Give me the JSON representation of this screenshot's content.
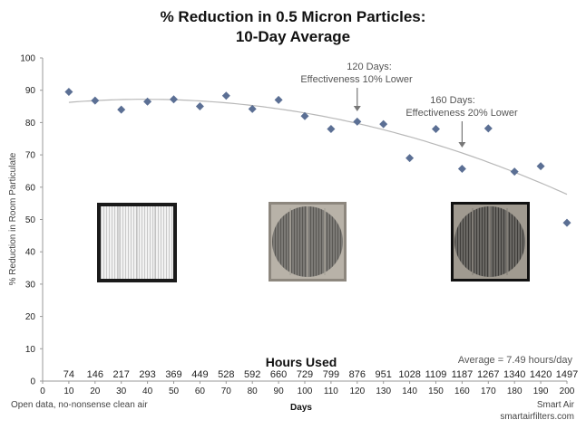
{
  "chart_data": {
    "type": "scatter",
    "title": "% Reduction in 0.5 Micron Particles:",
    "subtitle": "10-Day Average",
    "ylabel": "% Reduction in Room Particulate",
    "xlabel": "Days",
    "xlim": [
      0,
      200
    ],
    "ylim": [
      0,
      100
    ],
    "x_ticks": [
      "0",
      "10",
      "20",
      "30",
      "40",
      "50",
      "60",
      "70",
      "80",
      "90",
      "100",
      "110",
      "120",
      "130",
      "140",
      "150",
      "160",
      "170",
      "180",
      "190",
      "200"
    ],
    "y_ticks": [
      "0",
      "10",
      "20",
      "30",
      "40",
      "50",
      "60",
      "70",
      "80",
      "90",
      "100"
    ],
    "grid": false,
    "x": [
      10,
      20,
      30,
      40,
      50,
      60,
      70,
      80,
      90,
      100,
      110,
      120,
      130,
      140,
      150,
      160,
      170,
      180,
      190,
      200
    ],
    "y": [
      89.5,
      86.8,
      84,
      86.5,
      87.2,
      85,
      88.3,
      84.2,
      87,
      82,
      78,
      80.3,
      79.5,
      69,
      78,
      65.7,
      78.2,
      64.8,
      66.5,
      49
    ],
    "hours_label": "Hours Used",
    "hours": [
      "74",
      "146",
      "217",
      "293",
      "369",
      "449",
      "528",
      "592",
      "660",
      "729",
      "799",
      "876",
      "951",
      "1028",
      "1109",
      "1187",
      "1267",
      "1340",
      "1420",
      "1497"
    ],
    "average_note": "Average = 7.49 hours/day",
    "annotations": [
      {
        "line1": "120 Days:",
        "line2": "Effectiveness 10% Lower",
        "x": 120
      },
      {
        "line1": "160 Days:",
        "line2": "Effectiveness 20% Lower",
        "x": 160
      }
    ],
    "trendline": "polynomial",
    "colors": {
      "points": "#5b6f94",
      "trend": "#b8b8b8",
      "arrow": "#777777"
    }
  },
  "footer": {
    "left": "Open data, no-nonsense clean air",
    "right1": "Smart Air",
    "right2": "smartairfilters.com"
  },
  "filter_photos": [
    "new-filter-photo",
    "used-filter-photo-120-days",
    "used-filter-photo-160-days"
  ]
}
